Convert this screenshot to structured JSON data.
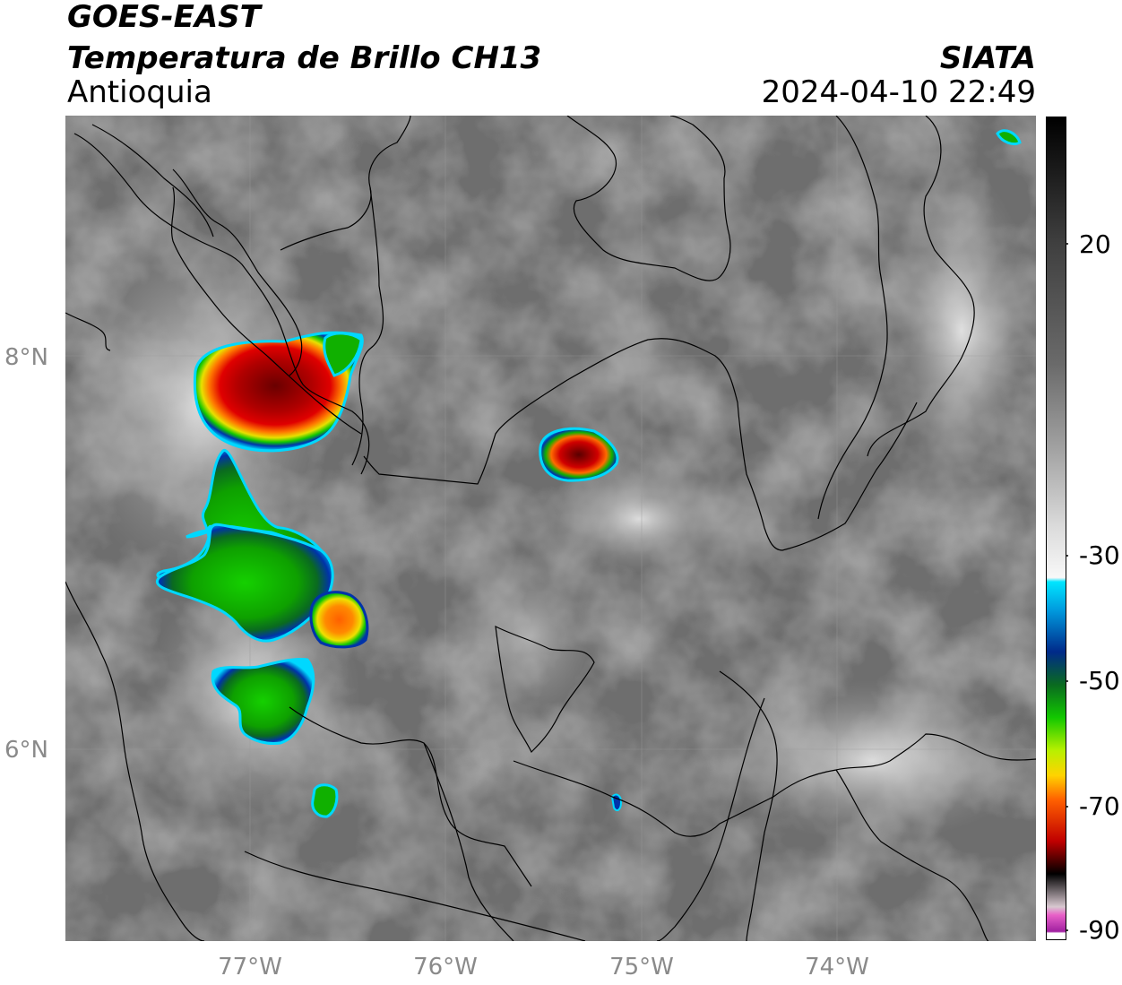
{
  "header": {
    "line1": "GOES-EAST",
    "line2": "Temperatura de Brillo CH13",
    "region": "Antioquia",
    "brand": "SIATA",
    "datetime": "2024-04-10 22:49"
  },
  "map": {
    "latitude_labels": [
      "8°N",
      "6°N"
    ],
    "longitude_labels": [
      "77°W",
      "76°W",
      "75°W",
      "74°W"
    ]
  },
  "colorbar": {
    "tick_labels": [
      "20",
      "-30",
      "-50",
      "-70",
      "-90"
    ],
    "colors": {
      "cyan": "#00e5ff",
      "blue": "#0033aa",
      "green": "#12c800",
      "yellow": "#f5e600",
      "orange": "#ff8800",
      "red": "#e00000",
      "dark_red": "#5a0000",
      "black": "#000000",
      "pink": "#e060c0",
      "purple": "#a020a0"
    }
  }
}
